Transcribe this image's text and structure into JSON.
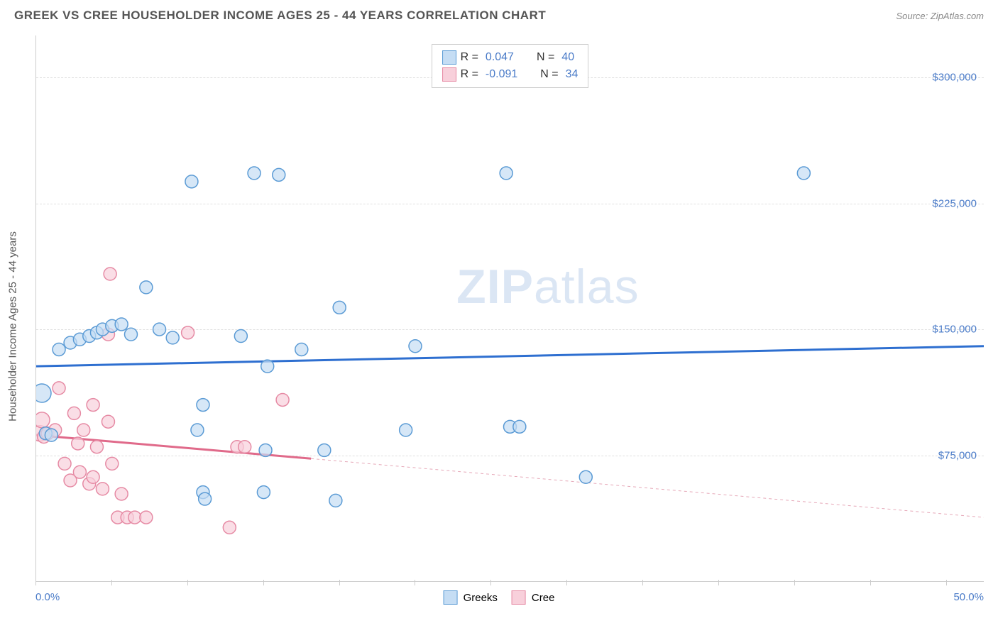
{
  "title": "GREEK VS CREE HOUSEHOLDER INCOME AGES 25 - 44 YEARS CORRELATION CHART",
  "source": "Source: ZipAtlas.com",
  "chart": {
    "type": "scatter",
    "y_axis_label": "Householder Income Ages 25 - 44 years",
    "background_color": "#ffffff",
    "grid_color": "#e0e0e0",
    "axis_color": "#cccccc",
    "xlim": [
      0,
      50
    ],
    "ylim": [
      0,
      325000
    ],
    "x_tick_labels": {
      "min": "0.0%",
      "max": "50.0%"
    },
    "x_tick_positions_pct": [
      0,
      8,
      16,
      24,
      32,
      40,
      48,
      56,
      64,
      72,
      80,
      88,
      96
    ],
    "y_gridlines": [
      75000,
      150000,
      225000,
      300000
    ],
    "y_tick_labels": [
      "$75,000",
      "$150,000",
      "$225,000",
      "$300,000"
    ],
    "label_color": "#4a7bc8",
    "label_fontsize": 15,
    "title_fontsize": 17,
    "marker_radius": 9,
    "marker_radius_large": 13,
    "series": [
      {
        "name": "Greeks",
        "color_fill": "#c5ddf4",
        "color_stroke": "#5b9bd5",
        "r": "0.047",
        "n": "40",
        "trend": {
          "x1": 0,
          "y1": 128000,
          "x2": 50,
          "y2": 140000,
          "color": "#2e6fd0",
          "width": 3
        },
        "points": [
          {
            "x": 0.3,
            "y": 112000,
            "r": 13
          },
          {
            "x": 0.5,
            "y": 88000
          },
          {
            "x": 0.8,
            "y": 87000
          },
          {
            "x": 1.2,
            "y": 138000
          },
          {
            "x": 1.8,
            "y": 142000
          },
          {
            "x": 2.3,
            "y": 144000
          },
          {
            "x": 2.8,
            "y": 146000
          },
          {
            "x": 3.2,
            "y": 148000
          },
          {
            "x": 3.5,
            "y": 150000
          },
          {
            "x": 4.0,
            "y": 152000
          },
          {
            "x": 4.5,
            "y": 153000
          },
          {
            "x": 5.0,
            "y": 147000
          },
          {
            "x": 5.8,
            "y": 175000
          },
          {
            "x": 6.5,
            "y": 150000
          },
          {
            "x": 7.2,
            "y": 145000
          },
          {
            "x": 8.2,
            "y": 238000
          },
          {
            "x": 8.5,
            "y": 90000
          },
          {
            "x": 8.8,
            "y": 53000
          },
          {
            "x": 8.8,
            "y": 105000
          },
          {
            "x": 8.9,
            "y": 49000
          },
          {
            "x": 10.8,
            "y": 146000
          },
          {
            "x": 11.5,
            "y": 243000
          },
          {
            "x": 12.0,
            "y": 53000
          },
          {
            "x": 12.1,
            "y": 78000
          },
          {
            "x": 12.8,
            "y": 242000
          },
          {
            "x": 12.2,
            "y": 128000
          },
          {
            "x": 14.0,
            "y": 138000
          },
          {
            "x": 15.2,
            "y": 78000
          },
          {
            "x": 15.8,
            "y": 48000
          },
          {
            "x": 16.0,
            "y": 163000
          },
          {
            "x": 19.5,
            "y": 90000
          },
          {
            "x": 20.0,
            "y": 140000
          },
          {
            "x": 25.0,
            "y": 92000
          },
          {
            "x": 25.5,
            "y": 92000
          },
          {
            "x": 24.8,
            "y": 243000
          },
          {
            "x": 29.0,
            "y": 62000
          },
          {
            "x": 40.5,
            "y": 243000
          }
        ]
      },
      {
        "name": "Cree",
        "color_fill": "#f8d0db",
        "color_stroke": "#e68aa4",
        "r": "-0.091",
        "n": "34",
        "trend_solid": {
          "x1": 0,
          "y1": 87000,
          "x2": 14.5,
          "y2": 73000,
          "color": "#e06a8a",
          "width": 3
        },
        "trend_dash": {
          "x1": 14.5,
          "y1": 73000,
          "x2": 50,
          "y2": 38000,
          "color": "#e6a8b8"
        },
        "points": [
          {
            "x": 0.2,
            "y": 88000,
            "r": 11
          },
          {
            "x": 0.3,
            "y": 96000,
            "r": 11
          },
          {
            "x": 0.4,
            "y": 86000
          },
          {
            "x": 0.6,
            "y": 88000
          },
          {
            "x": 1.0,
            "y": 90000
          },
          {
            "x": 1.2,
            "y": 115000
          },
          {
            "x": 1.5,
            "y": 70000
          },
          {
            "x": 1.8,
            "y": 60000
          },
          {
            "x": 2.0,
            "y": 100000
          },
          {
            "x": 2.2,
            "y": 82000
          },
          {
            "x": 2.3,
            "y": 65000
          },
          {
            "x": 2.5,
            "y": 90000
          },
          {
            "x": 2.8,
            "y": 58000
          },
          {
            "x": 3.0,
            "y": 105000
          },
          {
            "x": 3.0,
            "y": 62000
          },
          {
            "x": 3.2,
            "y": 80000
          },
          {
            "x": 3.5,
            "y": 55000
          },
          {
            "x": 3.8,
            "y": 95000
          },
          {
            "x": 3.8,
            "y": 147000
          },
          {
            "x": 3.9,
            "y": 183000
          },
          {
            "x": 4.0,
            "y": 70000
          },
          {
            "x": 4.3,
            "y": 38000
          },
          {
            "x": 4.5,
            "y": 52000
          },
          {
            "x": 4.8,
            "y": 38000
          },
          {
            "x": 5.2,
            "y": 38000
          },
          {
            "x": 5.8,
            "y": 38000
          },
          {
            "x": 8.0,
            "y": 148000
          },
          {
            "x": 10.2,
            "y": 32000
          },
          {
            "x": 10.6,
            "y": 80000
          },
          {
            "x": 11.0,
            "y": 80000
          },
          {
            "x": 13.0,
            "y": 108000
          }
        ]
      }
    ],
    "legend_bottom": [
      {
        "label": "Greeks",
        "swatch": "blue"
      },
      {
        "label": "Cree",
        "swatch": "pink"
      }
    ]
  },
  "watermark": {
    "prefix": "ZIP",
    "suffix": "atlas",
    "color": "#dbe6f4"
  }
}
